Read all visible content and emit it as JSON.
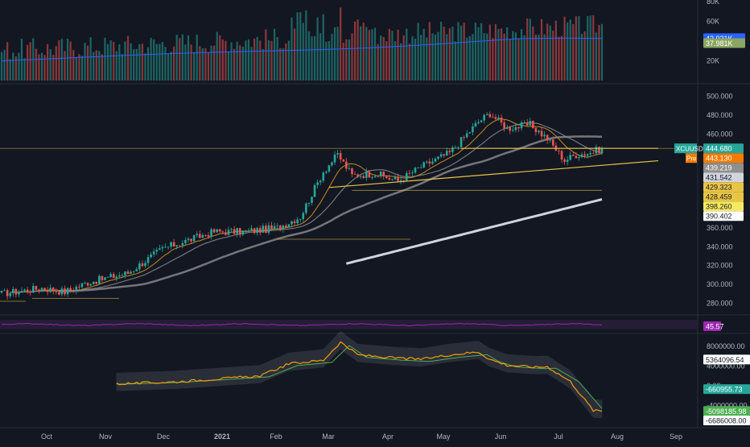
{
  "colors": {
    "background": "#131722",
    "separator": "#2a2e39",
    "axis_text": "#b2b5be",
    "up_candle": "#26a69a",
    "down_candle": "#ef5350",
    "volume_ma": "#2962ff",
    "price_ma_fast": "#f5a623",
    "price_ma_mid": "#8f8f8f",
    "price_ma_200": "#d1d4dc",
    "trendline": "#e8c547",
    "rsi": "#9c27b0",
    "rsi_band": "#5a2a6e",
    "indicator_line_1": "#f59e0b",
    "indicator_line_2": "#4caf50",
    "indicator_band": "#9598a1"
  },
  "chart_data": [
    {
      "panel": "volume",
      "type": "bar",
      "y_ticks": [
        "80K",
        "60K",
        "20K"
      ],
      "ylim": [
        0,
        80000
      ],
      "values_shape": "daily volume bars, roughly 20K-60K, with peaks up to ~75K in Feb-Mar 2021",
      "series": [
        {
          "name": "MA",
          "values_shape": "rises slowly from ~20K to ~42.9K"
        }
      ],
      "labels": [
        {
          "text": "42.931K",
          "color": "#2962ff"
        },
        {
          "text": "37.981K",
          "color": "#8aa661"
        }
      ]
    },
    {
      "panel": "price",
      "type": "candlestick",
      "symbol": "XCUUSD",
      "last_price": 444.68,
      "pre_label": "Pre",
      "pre_price": 443.13,
      "y_ticks": [
        "500.000",
        "480.000",
        "460.000",
        "360.000",
        "340.000",
        "320.000",
        "300.000",
        "280.000"
      ],
      "ylim": [
        270,
        510
      ],
      "x_ticks": [
        "Oct",
        "Nov",
        "Dec",
        "2021",
        "Feb",
        "Mar",
        "Apr",
        "May",
        "Jun",
        "Jul",
        "Aug",
        "Sep"
      ],
      "price_labels": [
        {
          "text": "439.219",
          "bg": "#8f8f8f",
          "color": "#ffffff"
        },
        {
          "text": "431.542",
          "bg": "#d1d4dc",
          "color": "#131722"
        },
        {
          "text": "429.323",
          "bg": "#e8c547",
          "color": "#131722"
        },
        {
          "text": "428.459",
          "bg": "#e8c547",
          "color": "#131722"
        },
        {
          "text": "398.260",
          "bg": "#f5e960",
          "color": "#131722"
        },
        {
          "text": "390.402",
          "bg": "#ffffff",
          "color": "#131722"
        }
      ]
    },
    {
      "panel": "rsi",
      "type": "line",
      "last_value": "45.57"
    },
    {
      "panel": "oscillator",
      "type": "line",
      "y_ticks": [
        "8000000.00",
        "4000000.00",
        "0.00",
        "-4000000.00"
      ],
      "ylim": [
        -8000000,
        10000000
      ],
      "labels": [
        {
          "text": "5364096.54",
          "bg": "#ffffff",
          "color": "#131722"
        },
        {
          "text": "-660955.73",
          "bg": "#26a69a",
          "color": "#ffffff"
        },
        {
          "text": "-5098185.98",
          "bg": "#4caf50",
          "color": "#ffffff"
        },
        {
          "text": "-6686008.00",
          "bg": "#ffffff",
          "color": "#131722"
        }
      ]
    }
  ]
}
